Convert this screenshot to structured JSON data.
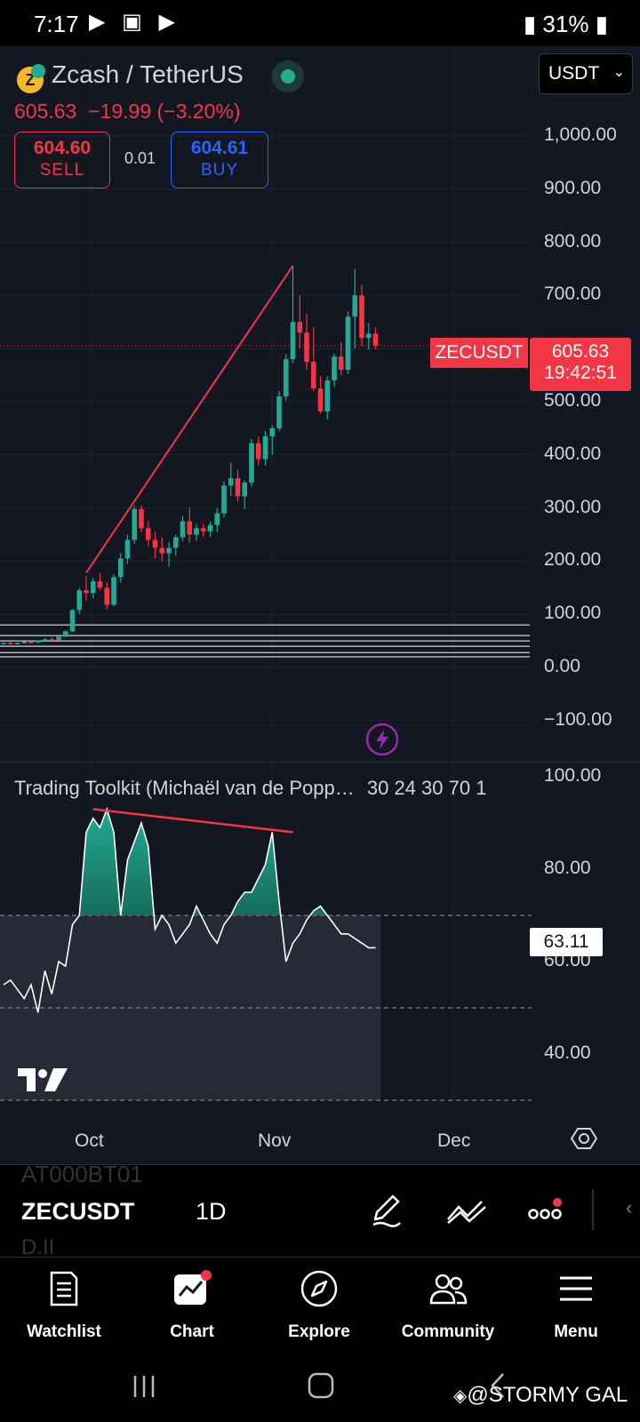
{
  "status_bar": {
    "time": "7:17",
    "battery": "31%"
  },
  "header": {
    "pair": "Zcash / TetherUS",
    "last_price": "605.63",
    "change": "−19.99 (−3.20%)",
    "sell_price": "604.60",
    "sell_label": "SELL",
    "spread": "0.01",
    "buy_price": "604.61",
    "buy_label": "BUY",
    "currency": "USDT"
  },
  "price_axis": [
    "1,000.00",
    "900.00",
    "800.00",
    "700.00",
    "500.00",
    "400.00",
    "300.00",
    "200.00",
    "100.00",
    "0.00",
    "−100.00"
  ],
  "price_tag": {
    "symbol": "ZECUSDT",
    "price": "605.63",
    "countdown": "19:42:51"
  },
  "indicator": {
    "title": "Trading Toolkit (Michaël van de Popp…",
    "params": "30 24 30 70 1",
    "axis": [
      "100.00",
      "80.00",
      "60.00",
      "40.00"
    ],
    "value": "63.11"
  },
  "time_axis": [
    "Oct",
    "Nov",
    "Dec"
  ],
  "symbol_bar": {
    "symbol": "ZECUSDT",
    "interval": "1D",
    "ghost_top": "AT000BT01",
    "ghost_bottom": "D.II"
  },
  "nav": [
    {
      "label": "Watchlist"
    },
    {
      "label": "Chart"
    },
    {
      "label": "Explore"
    },
    {
      "label": "Community"
    },
    {
      "label": "Menu"
    }
  ],
  "watermark": "@STORMY GAL",
  "colors": {
    "up": "#22ab94",
    "down": "#f23645",
    "bg": "#131722",
    "accent": "#2962ff"
  },
  "chart_data": {
    "type": "candlestick",
    "title": "Zcash / TetherUS",
    "ylim": [
      -110,
      1020
    ],
    "x_ticks": [
      "Oct",
      "Nov",
      "Dec"
    ],
    "candles": [
      [
        45,
        47,
        44,
        46
      ],
      [
        46,
        48,
        44,
        45
      ],
      [
        45,
        47,
        43,
        46
      ],
      [
        46,
        49,
        45,
        48
      ],
      [
        48,
        50,
        46,
        47
      ],
      [
        47,
        52,
        46,
        51
      ],
      [
        51,
        55,
        49,
        53
      ],
      [
        53,
        56,
        50,
        52
      ],
      [
        52,
        60,
        51,
        58
      ],
      [
        58,
        70,
        57,
        68
      ],
      [
        68,
        110,
        66,
        108
      ],
      [
        108,
        150,
        100,
        145
      ],
      [
        145,
        172,
        125,
        140
      ],
      [
        140,
        168,
        130,
        162
      ],
      [
        162,
        178,
        145,
        150
      ],
      [
        150,
        160,
        110,
        118
      ],
      [
        118,
        175,
        115,
        170
      ],
      [
        170,
        215,
        160,
        205
      ],
      [
        205,
        250,
        195,
        240
      ],
      [
        240,
        305,
        232,
        298
      ],
      [
        298,
        305,
        255,
        262
      ],
      [
        262,
        275,
        228,
        240
      ],
      [
        240,
        255,
        205,
        225
      ],
      [
        225,
        245,
        200,
        215
      ],
      [
        215,
        235,
        190,
        225
      ],
      [
        225,
        250,
        210,
        245
      ],
      [
        245,
        285,
        238,
        275
      ],
      [
        275,
        300,
        235,
        250
      ],
      [
        250,
        270,
        238,
        262
      ],
      [
        262,
        270,
        245,
        256
      ],
      [
        256,
        275,
        246,
        268
      ],
      [
        268,
        300,
        255,
        290
      ],
      [
        290,
        350,
        282,
        342
      ],
      [
        342,
        385,
        322,
        356
      ],
      [
        356,
        372,
        312,
        322
      ],
      [
        322,
        352,
        298,
        348
      ],
      [
        348,
        430,
        340,
        422
      ],
      [
        422,
        435,
        380,
        392
      ],
      [
        392,
        445,
        380,
        435
      ],
      [
        435,
        455,
        400,
        450
      ],
      [
        450,
        520,
        445,
        510
      ],
      [
        510,
        590,
        502,
        580
      ],
      [
        580,
        756,
        572,
        650
      ],
      [
        650,
        700,
        600,
        630
      ],
      [
        630,
        665,
        560,
        575
      ],
      [
        575,
        640,
        520,
        525
      ],
      [
        525,
        548,
        478,
        482
      ],
      [
        482,
        548,
        466,
        540
      ],
      [
        540,
        590,
        528,
        585
      ],
      [
        585,
        612,
        550,
        560
      ],
      [
        560,
        670,
        552,
        660
      ],
      [
        660,
        750,
        600,
        700
      ],
      [
        700,
        720,
        605,
        620
      ],
      [
        620,
        648,
        598,
        628
      ],
      [
        628,
        640,
        598,
        606
      ]
    ],
    "trendline": {
      "from": [
        12,
        178
      ],
      "to": [
        42,
        756
      ],
      "color": "#f23645"
    },
    "horizontal_levels": [
      80,
      60,
      50,
      40,
      28,
      20
    ],
    "indicator_series": [
      55,
      56,
      54,
      52,
      55,
      49,
      58,
      53,
      60,
      59,
      68,
      70,
      88,
      91,
      89,
      93,
      88,
      70,
      82,
      86,
      90,
      85,
      67,
      70,
      68,
      64,
      66,
      68,
      72,
      69,
      66,
      64,
      68,
      70,
      73,
      75,
      75,
      78,
      81,
      88,
      73,
      60,
      64,
      66,
      69,
      71,
      72,
      70,
      68,
      66,
      66,
      65,
      64,
      63,
      63
    ],
    "indicator_range": [
      30,
      100
    ],
    "indicator_bands": [
      70,
      50,
      30
    ],
    "indicator_divergence": {
      "from": [
        13,
        93
      ],
      "to": [
        42,
        88
      ],
      "color": "#f23645"
    }
  }
}
